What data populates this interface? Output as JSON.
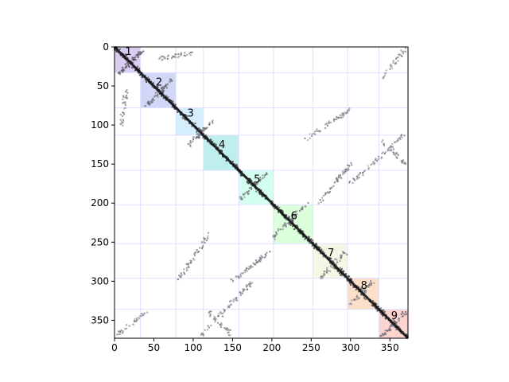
{
  "chart_data": {
    "type": "heatmap",
    "title": "",
    "xlabel": "",
    "ylabel": "",
    "xlim": [
      0,
      373
    ],
    "ylim": [
      373,
      0
    ],
    "x_ticks": [
      0,
      50,
      100,
      150,
      200,
      250,
      300,
      350
    ],
    "y_ticks": [
      0,
      50,
      100,
      150,
      200,
      250,
      300,
      350
    ],
    "grid": true,
    "domains": [
      {
        "label": "1",
        "start": 0,
        "end": 33,
        "color": "#9370DB"
      },
      {
        "label": "2",
        "start": 33,
        "end": 78,
        "color": "#7B8FE8"
      },
      {
        "label": "3",
        "start": 78,
        "end": 113,
        "color": "#87CEFA"
      },
      {
        "label": "4",
        "start": 113,
        "end": 158,
        "color": "#48D1CC"
      },
      {
        "label": "5",
        "start": 158,
        "end": 202,
        "color": "#7FFFD4"
      },
      {
        "label": "6",
        "start": 202,
        "end": 252,
        "color": "#98FB98"
      },
      {
        "label": "7",
        "start": 252,
        "end": 296,
        "color": "#DDE8B0"
      },
      {
        "label": "8",
        "start": 296,
        "end": 336,
        "color": "#F4A460"
      },
      {
        "label": "9",
        "start": 336,
        "end": 373,
        "color": "#FA8072"
      }
    ],
    "contact_bands": [
      {
        "x0": 0,
        "y0": 0,
        "x1": 373,
        "y1": 373,
        "strength": 1.0
      },
      {
        "x0": 5,
        "y0": 35,
        "x1": 35,
        "y1": 5,
        "strength": 0.8
      },
      {
        "x0": 40,
        "y0": 75,
        "x1": 75,
        "y1": 40,
        "strength": 0.6
      },
      {
        "x0": 95,
        "y0": 125,
        "x1": 125,
        "y1": 95,
        "strength": 0.6
      },
      {
        "x0": 160,
        "y0": 195,
        "x1": 195,
        "y1": 160,
        "strength": 0.5
      },
      {
        "x0": 200,
        "y0": 245,
        "x1": 245,
        "y1": 200,
        "strength": 0.5
      },
      {
        "x0": 262,
        "y0": 295,
        "x1": 295,
        "y1": 262,
        "strength": 0.5
      },
      {
        "x0": 300,
        "y0": 330,
        "x1": 330,
        "y1": 300,
        "strength": 0.5
      },
      {
        "x0": 340,
        "y0": 370,
        "x1": 370,
        "y1": 340,
        "strength": 0.6
      },
      {
        "x0": 100,
        "y0": 8,
        "x1": 55,
        "y1": 15,
        "strength": 0.4
      },
      {
        "x0": 8,
        "y0": 100,
        "x1": 15,
        "y1": 55,
        "strength": 0.4
      },
      {
        "x0": 240,
        "y0": 120,
        "x1": 300,
        "y1": 80,
        "strength": 0.4
      },
      {
        "x0": 120,
        "y0": 240,
        "x1": 80,
        "y1": 300,
        "strength": 0.4
      },
      {
        "x0": 260,
        "y0": 200,
        "x1": 300,
        "y1": 150,
        "strength": 0.45
      },
      {
        "x0": 200,
        "y0": 260,
        "x1": 150,
        "y1": 300,
        "strength": 0.45
      },
      {
        "x0": 340,
        "y0": 40,
        "x1": 372,
        "y1": 0,
        "strength": 0.35
      },
      {
        "x0": 40,
        "y0": 340,
        "x1": 0,
        "y1": 372,
        "strength": 0.35
      },
      {
        "x0": 300,
        "y0": 175,
        "x1": 370,
        "y1": 110,
        "strength": 0.4
      },
      {
        "x0": 175,
        "y0": 300,
        "x1": 110,
        "y1": 370,
        "strength": 0.4
      },
      {
        "x0": 150,
        "y0": 370,
        "x1": 120,
        "y1": 340,
        "strength": 0.4
      },
      {
        "x0": 370,
        "y0": 150,
        "x1": 340,
        "y1": 120,
        "strength": 0.4
      }
    ]
  }
}
